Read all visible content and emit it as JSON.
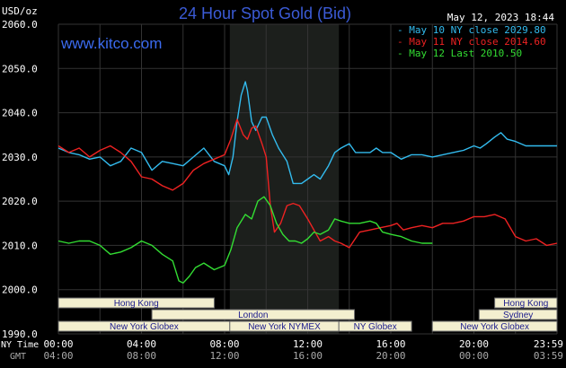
{
  "header": {
    "units": "USD/oz",
    "title": "24 Hour Spot Gold (Bid)",
    "timestamp": "May 12, 2023 18:44",
    "website": "www.kitco.com"
  },
  "colors": {
    "background": "#000000",
    "grid": "#333333",
    "highlight": "#1c1f1c",
    "axis_text": "#ffffff",
    "title": "#3b5bd6",
    "website": "#3b6bf0",
    "session_fill": "#f3efcf",
    "session_text": "#1a1a8c"
  },
  "legend": [
    {
      "prefix": "-",
      "label": "May 10 NY close 2029.80",
      "color": "#33bbee"
    },
    {
      "prefix": "-",
      "label": "May 11 NY close 2014.60",
      "color": "#ee2222"
    },
    {
      "prefix": "-",
      "label": "May 12 Last 2010.50",
      "color": "#33dd33"
    }
  ],
  "sessions": [
    {
      "label": "Hong Kong",
      "start": 0,
      "end": 7.5,
      "row": 0
    },
    {
      "label": "London",
      "start": 4.5,
      "end": 14.25,
      "row": 1
    },
    {
      "label": "New York Globex",
      "start": 0,
      "end": 8.25,
      "row": 2
    },
    {
      "label": "New York NYMEX",
      "start": 8.25,
      "end": 13.5,
      "row": 2
    },
    {
      "label": "NY Globex",
      "start": 13.5,
      "end": 17,
      "row": 2
    },
    {
      "label": "Hong Kong",
      "start": 21,
      "end": 24,
      "row": 0
    },
    {
      "label": "Sydney",
      "start": 20.25,
      "end": 24,
      "row": 1
    },
    {
      "label": "New York Globex",
      "start": 18,
      "end": 24,
      "row": 2
    }
  ],
  "footer": {
    "ny_label": "NY Time",
    "gmt_label": "GMT",
    "ny_ticks": [
      "00:00",
      "04:00",
      "08:00",
      "12:00",
      "16:00",
      "20:00",
      "23:59"
    ],
    "gmt_ticks": [
      "04:00",
      "08:00",
      "12:00",
      "16:00",
      "20:00",
      "00:00",
      "03:59"
    ]
  },
  "chart_data": {
    "type": "line",
    "title": "24 Hour Spot Gold (Bid)",
    "ylabel": "USD/oz",
    "xlabel": "NY Time",
    "xlim": [
      0,
      24
    ],
    "ylim": [
      1990,
      2060
    ],
    "yticks": [
      "1990.0",
      "2000.0",
      "2010.0",
      "2020.0",
      "2030.0",
      "2040.0",
      "2050.0",
      "2060.0"
    ],
    "x_tick_hours": [
      0,
      4,
      8,
      12,
      16,
      20,
      24
    ],
    "highlight_range": [
      8.25,
      13.5
    ],
    "grid": true,
    "legend_position": "top-right",
    "series": [
      {
        "name": "May 10 NY close 2029.80",
        "color": "#33bbee",
        "points": [
          [
            0,
            2032
          ],
          [
            0.5,
            2031
          ],
          [
            1,
            2030.5
          ],
          [
            1.5,
            2029.5
          ],
          [
            2,
            2030
          ],
          [
            2.5,
            2028
          ],
          [
            3,
            2029
          ],
          [
            3.5,
            2032
          ],
          [
            4,
            2031
          ],
          [
            4.5,
            2027
          ],
          [
            5,
            2029
          ],
          [
            5.5,
            2028.5
          ],
          [
            6,
            2028
          ],
          [
            6.5,
            2030
          ],
          [
            7,
            2032
          ],
          [
            7.5,
            2029
          ],
          [
            8,
            2028
          ],
          [
            8.2,
            2026
          ],
          [
            8.4,
            2030
          ],
          [
            8.6,
            2038
          ],
          [
            8.8,
            2044
          ],
          [
            9,
            2047
          ],
          [
            9.1,
            2045
          ],
          [
            9.3,
            2038
          ],
          [
            9.5,
            2036
          ],
          [
            9.8,
            2039
          ],
          [
            10,
            2039
          ],
          [
            10.3,
            2035
          ],
          [
            10.6,
            2032
          ],
          [
            11,
            2029
          ],
          [
            11.3,
            2024
          ],
          [
            11.7,
            2024
          ],
          [
            12,
            2025
          ],
          [
            12.3,
            2026
          ],
          [
            12.6,
            2025
          ],
          [
            13,
            2028
          ],
          [
            13.3,
            2031
          ],
          [
            13.6,
            2032
          ],
          [
            14,
            2033
          ],
          [
            14.3,
            2031
          ],
          [
            14.6,
            2031
          ],
          [
            15,
            2031
          ],
          [
            15.3,
            2032
          ],
          [
            15.6,
            2031
          ],
          [
            16,
            2031
          ],
          [
            16.5,
            2029.5
          ],
          [
            17,
            2030.5
          ],
          [
            17.5,
            2030.5
          ],
          [
            18,
            2030
          ],
          [
            18.5,
            2030.5
          ],
          [
            19,
            2031
          ],
          [
            19.5,
            2031.5
          ],
          [
            20,
            2032.5
          ],
          [
            20.3,
            2032
          ],
          [
            20.6,
            2033
          ],
          [
            21,
            2034.5
          ],
          [
            21.3,
            2035.5
          ],
          [
            21.6,
            2034
          ],
          [
            22,
            2033.5
          ],
          [
            22.5,
            2032.5
          ],
          [
            23,
            2032.5
          ],
          [
            23.5,
            2032.5
          ],
          [
            24,
            2032.5
          ]
        ]
      },
      {
        "name": "May 11 NY close 2014.60",
        "color": "#ee2222",
        "points": [
          [
            0,
            2032.5
          ],
          [
            0.5,
            2031
          ],
          [
            1,
            2032
          ],
          [
            1.5,
            2030
          ],
          [
            2,
            2031.5
          ],
          [
            2.5,
            2032.5
          ],
          [
            3,
            2031
          ],
          [
            3.5,
            2029
          ],
          [
            4,
            2025.5
          ],
          [
            4.5,
            2025
          ],
          [
            5,
            2023.5
          ],
          [
            5.5,
            2022.5
          ],
          [
            6,
            2024
          ],
          [
            6.5,
            2027
          ],
          [
            7,
            2028.5
          ],
          [
            7.5,
            2029.5
          ],
          [
            8,
            2030.5
          ],
          [
            8.3,
            2034
          ],
          [
            8.6,
            2038.5
          ],
          [
            8.9,
            2035
          ],
          [
            9.1,
            2034
          ],
          [
            9.3,
            2036.5
          ],
          [
            9.5,
            2037
          ],
          [
            9.8,
            2033
          ],
          [
            10,
            2030
          ],
          [
            10.2,
            2019
          ],
          [
            10.4,
            2013
          ],
          [
            10.7,
            2015
          ],
          [
            11,
            2019
          ],
          [
            11.3,
            2019.5
          ],
          [
            11.6,
            2019
          ],
          [
            12,
            2016
          ],
          [
            12.3,
            2013.5
          ],
          [
            12.6,
            2011
          ],
          [
            13,
            2012
          ],
          [
            13.3,
            2011
          ],
          [
            13.6,
            2010.5
          ],
          [
            14,
            2009.5
          ],
          [
            14.5,
            2013
          ],
          [
            15,
            2013.5
          ],
          [
            15.5,
            2014
          ],
          [
            16,
            2014.5
          ],
          [
            16.3,
            2015
          ],
          [
            16.6,
            2013.5
          ],
          [
            17,
            2014
          ],
          [
            17.5,
            2014.5
          ],
          [
            18,
            2014
          ],
          [
            18.5,
            2015
          ],
          [
            19,
            2015
          ],
          [
            19.5,
            2015.5
          ],
          [
            20,
            2016.5
          ],
          [
            20.5,
            2016.5
          ],
          [
            21,
            2017
          ],
          [
            21.5,
            2016
          ],
          [
            22,
            2012
          ],
          [
            22.5,
            2011
          ],
          [
            23,
            2011.5
          ],
          [
            23.5,
            2010
          ],
          [
            24,
            2010.5
          ]
        ]
      },
      {
        "name": "May 12 Last 2010.50",
        "color": "#33dd33",
        "points": [
          [
            0,
            2011
          ],
          [
            0.5,
            2010.5
          ],
          [
            1,
            2011
          ],
          [
            1.5,
            2011
          ],
          [
            2,
            2010
          ],
          [
            2.5,
            2008
          ],
          [
            3,
            2008.5
          ],
          [
            3.5,
            2009.5
          ],
          [
            4,
            2011
          ],
          [
            4.5,
            2010
          ],
          [
            5,
            2008
          ],
          [
            5.5,
            2006.5
          ],
          [
            5.8,
            2002
          ],
          [
            6,
            2001.5
          ],
          [
            6.3,
            2003
          ],
          [
            6.6,
            2005
          ],
          [
            7,
            2006
          ],
          [
            7.5,
            2004.5
          ],
          [
            8,
            2005.5
          ],
          [
            8.3,
            2009
          ],
          [
            8.6,
            2014
          ],
          [
            9,
            2017
          ],
          [
            9.3,
            2016
          ],
          [
            9.6,
            2020
          ],
          [
            9.9,
            2021
          ],
          [
            10.2,
            2019
          ],
          [
            10.5,
            2015
          ],
          [
            10.8,
            2012.5
          ],
          [
            11.1,
            2011
          ],
          [
            11.4,
            2011
          ],
          [
            11.7,
            2010.5
          ],
          [
            12,
            2011.5
          ],
          [
            12.3,
            2013
          ],
          [
            12.6,
            2012.5
          ],
          [
            13,
            2013.5
          ],
          [
            13.3,
            2016
          ],
          [
            13.6,
            2015.5
          ],
          [
            14,
            2015
          ],
          [
            14.5,
            2015
          ],
          [
            15,
            2015.5
          ],
          [
            15.3,
            2015
          ],
          [
            15.6,
            2013
          ],
          [
            16,
            2012.5
          ],
          [
            16.5,
            2012
          ],
          [
            17,
            2011
          ],
          [
            17.5,
            2010.5
          ],
          [
            18,
            2010.5
          ]
        ]
      }
    ]
  }
}
